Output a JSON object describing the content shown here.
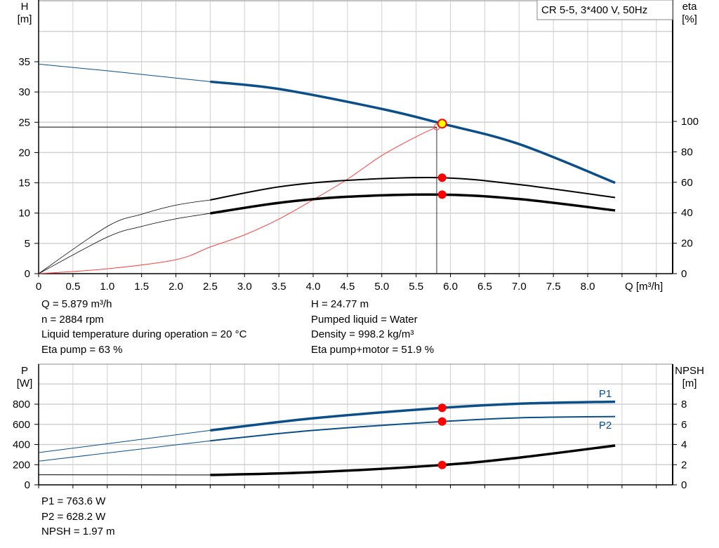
{
  "legend_box": "CR 5-5, 3*400 V, 50Hz",
  "colors": {
    "head": "#0b4f8a",
    "power": "#0b4f8a",
    "efficiency": "#000000",
    "npsh": "#000000",
    "system_curve": "#ff4040",
    "duty_point": "#ff0000",
    "duty_point_head": "#ffff00",
    "grid": "#d0d0d0"
  },
  "chart_data": [
    {
      "type": "line",
      "xlabel": "Q [m³/h]",
      "xlim": [
        0,
        9.2
      ],
      "x_ticks": [
        "0",
        "0.5",
        "1.0",
        "1.5",
        "2.0",
        "2.5",
        "3.0",
        "3.5",
        "4.0",
        "4.5",
        "5.0",
        "5.5",
        "6.0",
        "6.5",
        "7.0",
        "7.5",
        "8.0"
      ],
      "ylabel_left": {
        "name": "H",
        "unit": "[m]"
      },
      "ylim_left": [
        0,
        45
      ],
      "y_ticks_left": [
        "0",
        "5",
        "10",
        "15",
        "20",
        "25",
        "30",
        "35"
      ],
      "ylabel_right": {
        "name": "eta",
        "unit": "[%]"
      },
      "ylim_right": [
        0,
        207
      ],
      "y_ticks_right": [
        "0",
        "20",
        "40",
        "60",
        "80",
        "100"
      ],
      "grid": true,
      "series": [
        {
          "id": "head",
          "axis": "left",
          "points": [
            [
              0,
              34.6
            ],
            [
              1,
              33.5
            ],
            [
              2.5,
              31.7
            ],
            [
              3.5,
              30.5
            ],
            [
              5,
              27.2
            ],
            [
              5.879,
              24.77
            ],
            [
              7,
              21.4
            ],
            [
              8.4,
              15.0
            ]
          ],
          "operating_from": 2.5
        },
        {
          "id": "eta-pump",
          "axis": "right",
          "points": [
            [
              0,
              0
            ],
            [
              1,
              31
            ],
            [
              1.5,
              39
            ],
            [
              2,
              45
            ],
            [
              2.5,
              48.4
            ],
            [
              3.5,
              57
            ],
            [
              4.5,
              61.3
            ],
            [
              5.879,
              63
            ],
            [
              7,
              58.5
            ],
            [
              8.4,
              50
            ]
          ],
          "operating_from": 2.5
        },
        {
          "id": "eta-pump-motor",
          "axis": "right",
          "points": [
            [
              0,
              0
            ],
            [
              1,
              24
            ],
            [
              1.5,
              31
            ],
            [
              2,
              36
            ],
            [
              2.5,
              39.6
            ],
            [
              3.5,
              46.5
            ],
            [
              4.5,
              50.5
            ],
            [
              5.879,
              51.9
            ],
            [
              7,
              49
            ],
            [
              8.4,
              41.5
            ]
          ],
          "operating_from": 2.5
        },
        {
          "id": "system-curve",
          "axis": "left",
          "points": [
            [
              0,
              0
            ],
            [
              1,
              0.8
            ],
            [
              2,
              2.3
            ],
            [
              2.5,
              4.4
            ],
            [
              3,
              6.4
            ],
            [
              3.5,
              9
            ],
            [
              4,
              12.2
            ],
            [
              4.5,
              15.6
            ],
            [
              5,
              19.5
            ],
            [
              5.5,
              22.6
            ],
            [
              5.8,
              24.2
            ]
          ]
        }
      ],
      "duty_point": {
        "Q": 5.879,
        "H": 24.77,
        "eta_pump": 63,
        "eta_pump_motor": 51.9
      },
      "required_point": {
        "Q": 5.8,
        "H": 24.2
      }
    },
    {
      "type": "line",
      "ylabel_left": {
        "name": "P",
        "unit": "[W]"
      },
      "ylim_left": [
        0,
        1200
      ],
      "y_ticks_left": [
        "0",
        "200",
        "400",
        "600",
        "800"
      ],
      "ylabel_right": {
        "name": "NPSH",
        "unit": "[m]"
      },
      "ylim_right": [
        0,
        12
      ],
      "y_ticks_right": [
        "0",
        "2",
        "4",
        "6",
        "8"
      ],
      "grid": true,
      "series": [
        {
          "id": "p1",
          "name": "P1",
          "axis": "left",
          "points": [
            [
              0,
              320
            ],
            [
              2.5,
              540
            ],
            [
              4,
              660
            ],
            [
              5.879,
              763.6
            ],
            [
              7,
              805
            ],
            [
              8.4,
              825
            ]
          ],
          "operating_from": 2.5,
          "thick": true
        },
        {
          "id": "p2",
          "name": "P2",
          "axis": "left",
          "points": [
            [
              0,
              235
            ],
            [
              2.5,
              437
            ],
            [
              4,
              540
            ],
            [
              5.879,
              628.2
            ],
            [
              7,
              665
            ],
            [
              8.4,
              678
            ]
          ],
          "operating_from": 2.5
        },
        {
          "id": "npsh",
          "axis": "right",
          "points": [
            [
              0,
              1.0
            ],
            [
              2.5,
              0.98
            ],
            [
              4,
              1.25
            ],
            [
              5.879,
              1.97
            ],
            [
              7,
              2.7
            ],
            [
              8.4,
              3.9
            ]
          ],
          "operating_from": 2.5,
          "thick": true
        }
      ],
      "duty_point": {
        "Q": 5.879,
        "P1": 763.6,
        "P2": 628.2,
        "NPSH": 1.97
      }
    }
  ],
  "info_left": [
    "Q = 5.879 m³/h",
    "n = 2884 rpm",
    "Liquid temperature during operation = 20 °C",
    "Eta pump = 63 %"
  ],
  "info_right": [
    "H = 24.77 m",
    "Pumped liquid = Water",
    "Density = 998.2 kg/m³",
    "Eta pump+motor = 51.9 %"
  ],
  "info_bottom": [
    "P1 = 763.6 W",
    "P2 = 628.2 W",
    "NPSH = 1.97 m"
  ]
}
